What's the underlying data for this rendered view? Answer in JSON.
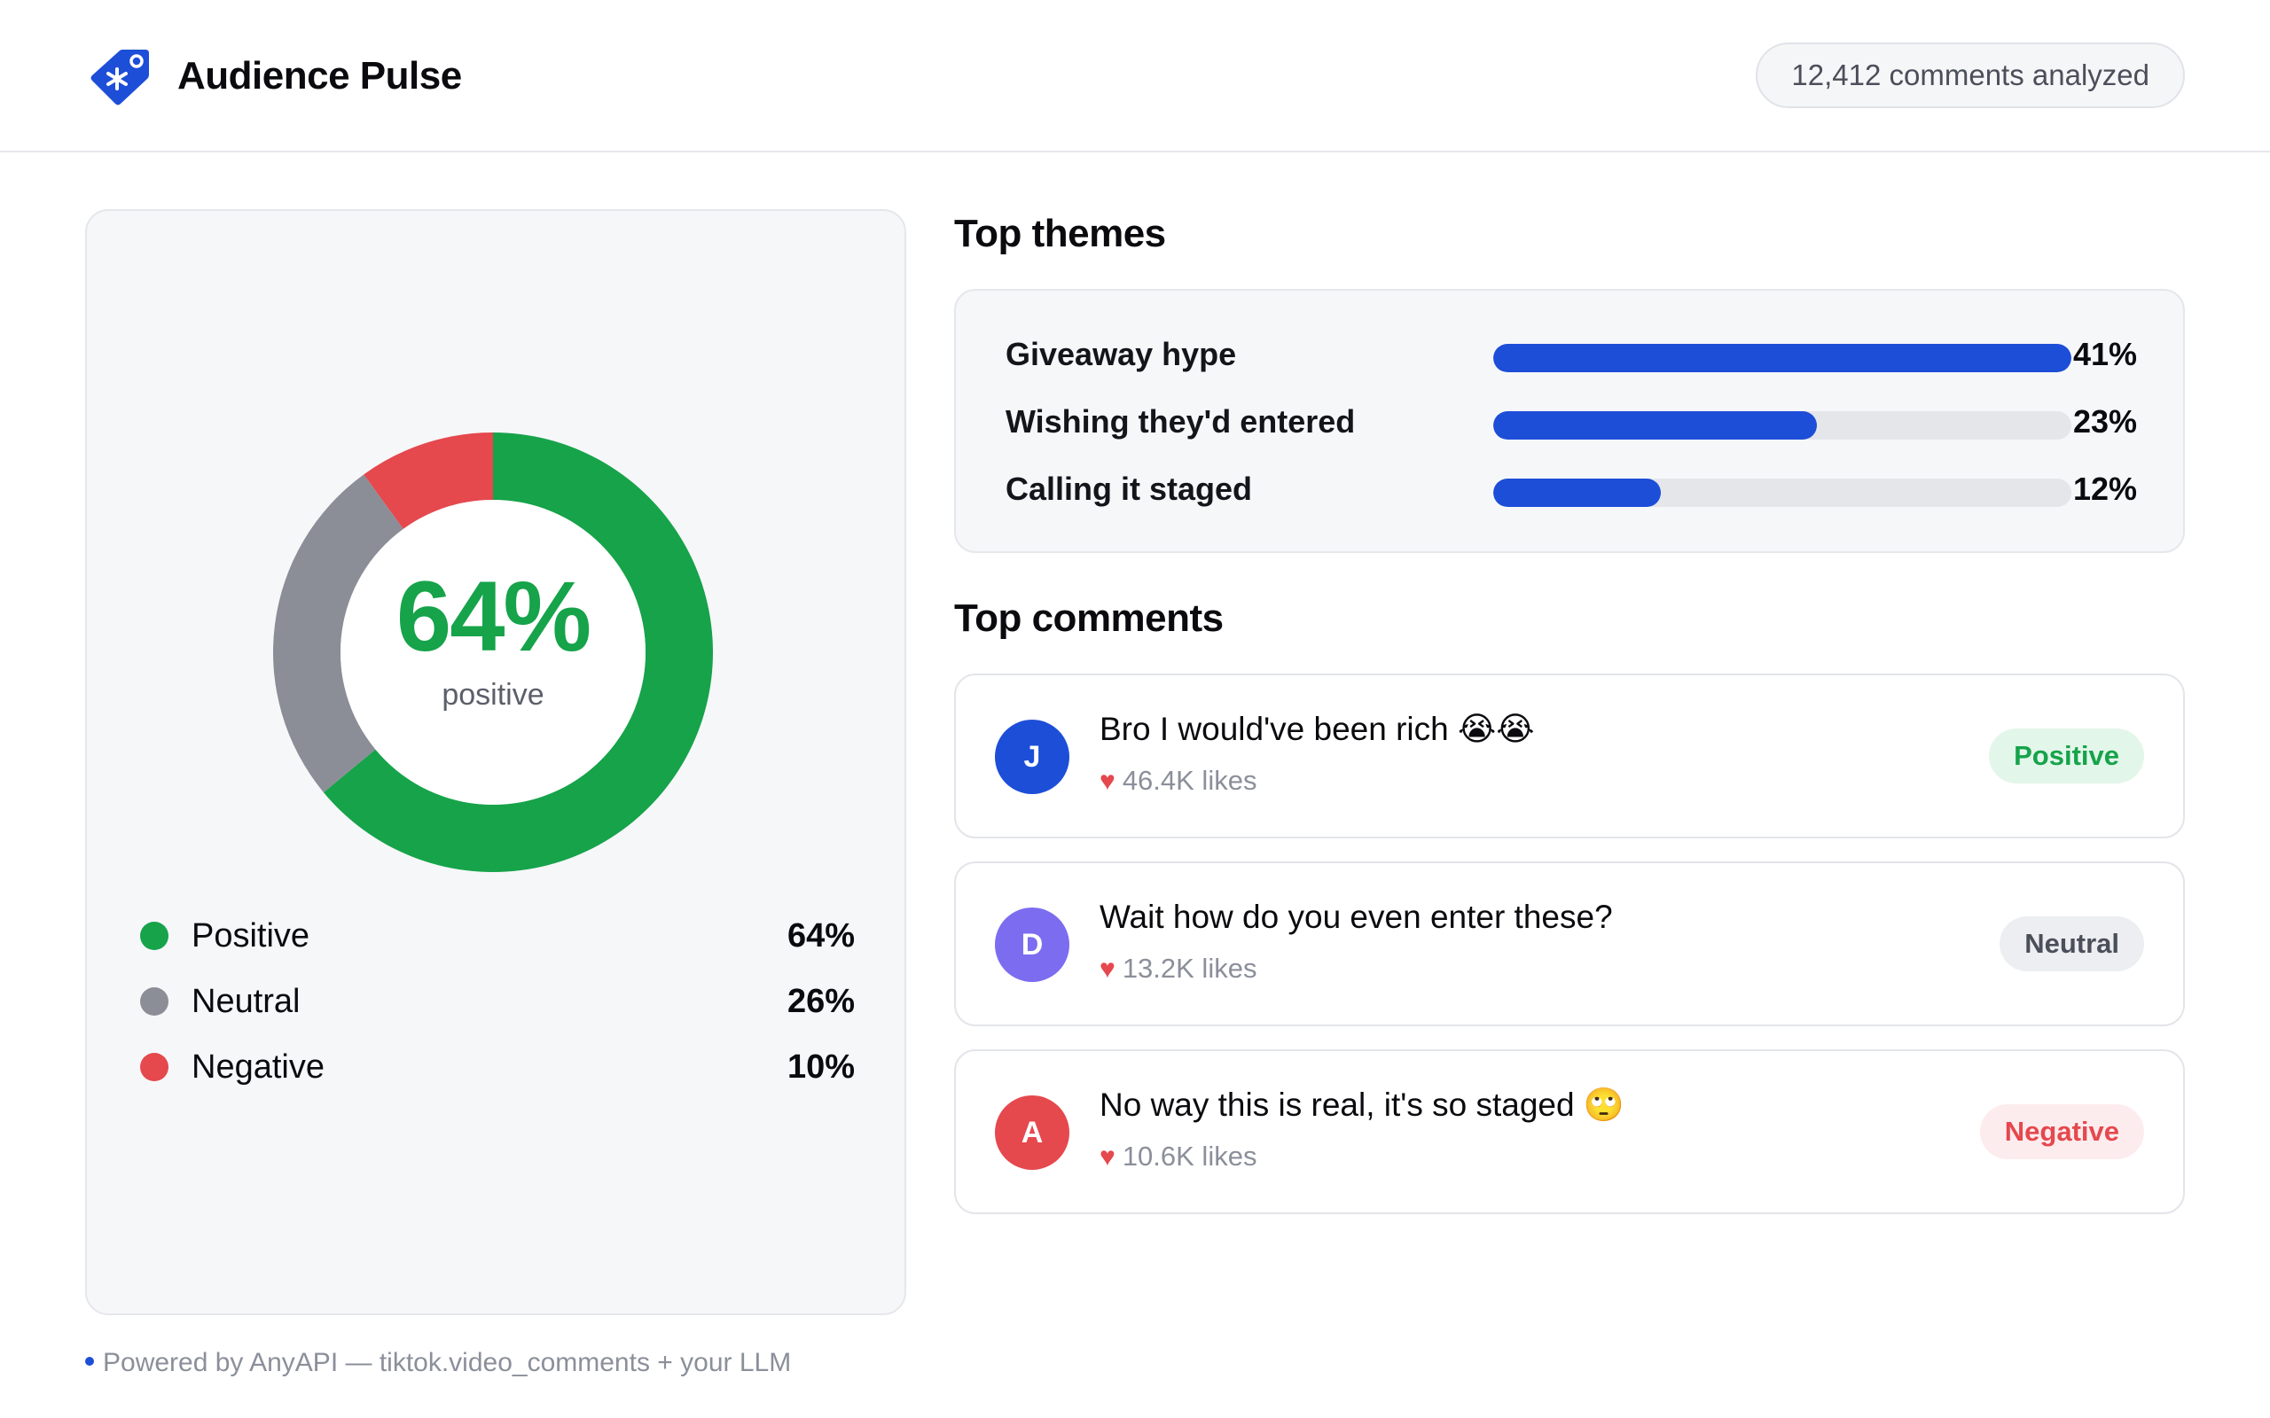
{
  "header": {
    "title": "Audience Pulse",
    "comments_count": "12,412 comments analyzed"
  },
  "sentiment": {
    "headline_value": "64%",
    "headline_label": "positive",
    "chart_data": {
      "type": "pie",
      "categories": [
        "Positive",
        "Neutral",
        "Negative"
      ],
      "values": [
        64,
        26,
        10
      ],
      "colors": [
        "#16a34a",
        "#8b8e97",
        "#e5484d"
      ]
    },
    "legend": [
      {
        "name": "Positive",
        "value": "64%",
        "color": "#16a34a"
      },
      {
        "name": "Neutral",
        "value": "26%",
        "color": "#8b8e97"
      },
      {
        "name": "Negative",
        "value": "10%",
        "color": "#e5484d"
      }
    ]
  },
  "themes": {
    "title": "Top themes",
    "items": [
      {
        "label": "Giveaway hype",
        "value": "41%",
        "fill": 1.0
      },
      {
        "label": "Wishing they'd entered",
        "value": "23%",
        "fill": 0.56
      },
      {
        "label": "Calling it staged",
        "value": "12%",
        "fill": 0.29
      }
    ],
    "bar_color": "#1d4ed8"
  },
  "comments": {
    "title": "Top comments",
    "items": [
      {
        "initial": "J",
        "avatar_color": "#1d4ed8",
        "text": "Bro I would've been rich 😭😭",
        "likes": "46.4K likes",
        "sentiment": "Positive",
        "badge_bg": "#e3f6ea",
        "badge_fg": "#16a34a"
      },
      {
        "initial": "D",
        "avatar_color": "#7c6cf0",
        "text": "Wait how do you even enter these?",
        "likes": "13.2K likes",
        "sentiment": "Neutral",
        "badge_bg": "#eceef1",
        "badge_fg": "#4b4f5a"
      },
      {
        "initial": "A",
        "avatar_color": "#e5484d",
        "text": "No way this is real, it's so staged 🙄",
        "likes": "10.6K likes",
        "sentiment": "Negative",
        "badge_bg": "#fdecee",
        "badge_fg": "#e5484d"
      }
    ]
  },
  "footer": {
    "text": "Powered by AnyAPI — tiktok.video_comments + your LLM"
  },
  "icons": {
    "logo": "price-tag-icon",
    "heart": "heart-icon"
  }
}
